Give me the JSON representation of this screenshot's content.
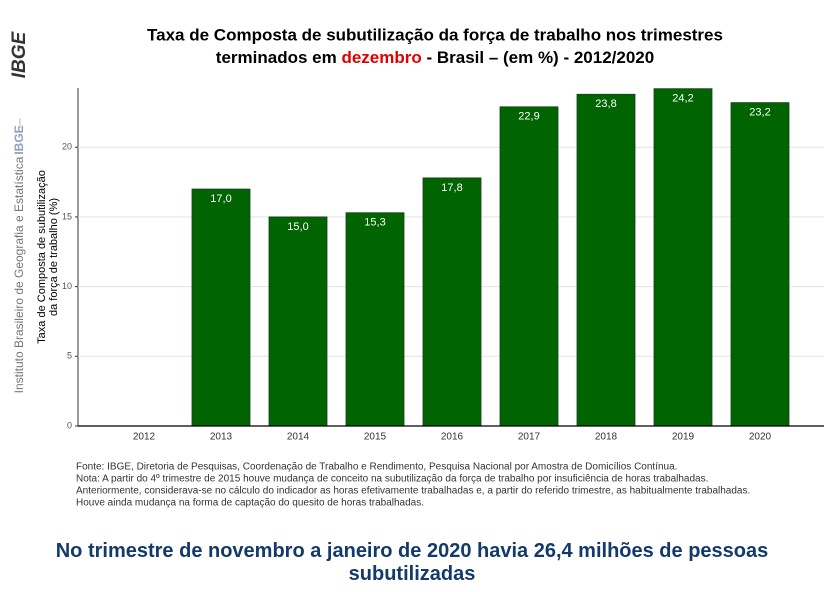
{
  "sidebar": {
    "logo": "IBGE",
    "institute": "Instituto Brasileiro de Geografia e Estatística",
    "label": "IBGE"
  },
  "chart_data": {
    "type": "bar",
    "title": [
      "Taxa de Composta de subutilização da força de trabalho nos trimestres",
      "terminados em ",
      "dezembro",
      " - Brasil – (em %) - 2012/2020"
    ],
    "ylabel": [
      "Taxa de Composta de subutilização",
      "da força de trabalho (%)"
    ],
    "categories": [
      "2012",
      "2013",
      "2014",
      "2015",
      "2016",
      "2017",
      "2018",
      "2019",
      "2020"
    ],
    "values": [
      null,
      17.0,
      15.0,
      15.3,
      17.8,
      22.9,
      23.8,
      24.2,
      23.2
    ],
    "value_labels": [
      null,
      "17,0",
      "15,0",
      "15,3",
      "17,8",
      "22,9",
      "23,8",
      "24,2",
      "23,2"
    ],
    "color": "#006400",
    "ylim": [
      0,
      24.25
    ],
    "yticks": [
      0,
      5,
      10,
      15,
      20
    ],
    "grid": true
  },
  "notes": [
    "Fonte: IBGE, Diretoria de Pesquisas, Coordenação de Trabalho e Rendimento, Pesquisa Nacional por Amostra de Domicílios Contínua.",
    "Nota: A partir do 4º trimestre de 2015 houve mudança de conceito na subutilização da força de trabalho por insuficiência de horas trabalhadas.",
    "Anteriormente, considerava-se no cálculo do indicador as horas efetivamente trabalhadas e, a partir do referido trimestre, as habitualmente trabalhadas.",
    "Houve ainda mudança na forma de captação do quesito de horas trabalhadas."
  ],
  "headline": "No trimestre de novembro a janeiro de 2020 havia 26,4 milhões de pessoas subutilizadas"
}
